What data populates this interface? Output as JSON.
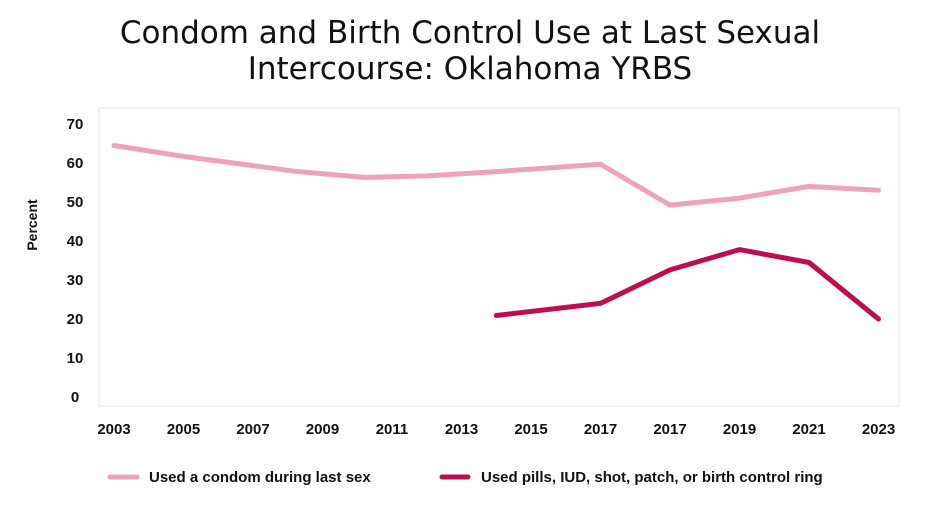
{
  "chart_data": {
    "type": "line",
    "title_line1": "Condom and Birth Control Use at Last Sexual",
    "title_line2": "Intercourse: Oklahoma YRBS",
    "ylabel": "Percent",
    "ylim": [
      0,
      70
    ],
    "yticks": [
      0,
      10,
      20,
      30,
      40,
      50,
      60,
      70
    ],
    "categories": [
      "2003",
      "2005",
      "2007",
      "2009",
      "2011",
      "2013",
      "2015",
      "2017",
      "2017",
      "2019",
      "2021",
      "2023"
    ],
    "legend_position": "bottom",
    "grid": false,
    "series": [
      {
        "name": "Used a condom during last sex",
        "color": "#eda3bc",
        "x_index": [
          0,
          1,
          2,
          3,
          4,
          5,
          6,
          7,
          8,
          9,
          10,
          11
        ],
        "points": [
          [
            0,
            64.5
          ],
          [
            1,
            61.7
          ],
          [
            2.6,
            57.9
          ],
          [
            3.6,
            56.3
          ],
          [
            4.5,
            56.7
          ],
          [
            5.5,
            57.8
          ],
          [
            7.0,
            59.7
          ],
          [
            8.0,
            49.2
          ],
          [
            9.0,
            51.0
          ],
          [
            10.0,
            54.0
          ],
          [
            11.0,
            53.0
          ]
        ]
      },
      {
        "name": "Used pills, IUD, shot, patch, or birth control ring",
        "color": "#bc0f52",
        "points": [
          [
            5.5,
            20.9
          ],
          [
            7.0,
            24.0
          ],
          [
            8.0,
            32.6
          ],
          [
            9.0,
            37.8
          ],
          [
            10.0,
            34.5
          ],
          [
            11.0,
            20.0
          ]
        ]
      }
    ]
  }
}
